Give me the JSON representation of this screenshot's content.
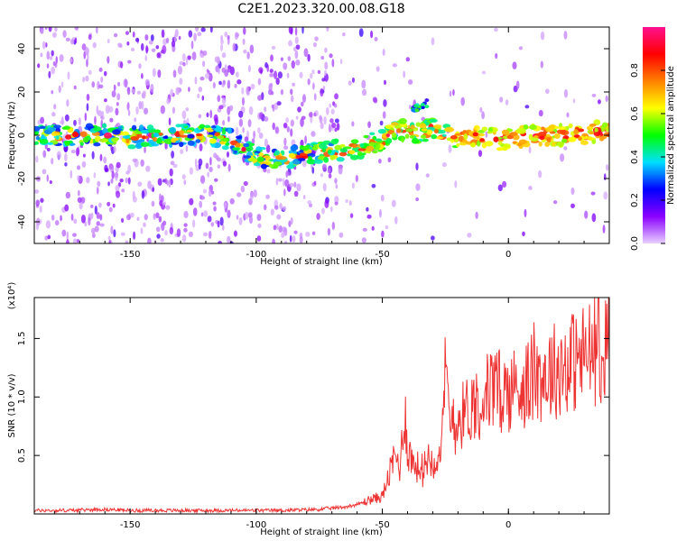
{
  "title": "C2E1.2023.320.00.08.G18",
  "chart_data": [
    {
      "type": "heatmap",
      "xlabel": "Height of straight line (km)",
      "ylabel": "Frequency (Hz)",
      "xlim": [
        -188,
        40
      ],
      "ylim": [
        -50,
        50
      ],
      "xticks": [
        -150,
        -100,
        -50,
        0
      ],
      "yticks": [
        -40,
        -20,
        0,
        20,
        40
      ],
      "xtick_labels": [
        "-150",
        "-100",
        "-50",
        "0"
      ],
      "ytick_labels": [
        "-40",
        "-20",
        "0",
        "20",
        "40"
      ],
      "colorbar": {
        "label": "Normalized spectral amplitude",
        "range": [
          0,
          1
        ],
        "ticks": [
          0,
          0.2,
          0.4,
          0.6,
          0.8
        ],
        "tick_labels": [
          "0.0",
          "0.2",
          "0.4",
          "0.6",
          "0.8"
        ],
        "colormap": [
          "#e8d0ff",
          "#8a00ff",
          "#0000ff",
          "#00e0ff",
          "#00ff00",
          "#ffff00",
          "#ff8000",
          "#ff0000",
          "#ff1090"
        ]
      },
      "ridge": {
        "x": [
          -188,
          -170,
          -160,
          -150,
          -140,
          -130,
          -120,
          -110,
          -100,
          -90,
          -80,
          -70,
          -66,
          -60,
          -55,
          -50,
          -45,
          -40,
          -35,
          -30,
          -25,
          -20,
          -15,
          -10,
          -5,
          0,
          5,
          10,
          20,
          30,
          40
        ],
        "y": [
          0,
          0,
          0,
          -1,
          0,
          0,
          1,
          -2,
          -10,
          -11,
          -9,
          -7,
          -7,
          -6,
          -4,
          -2,
          3,
          2,
          1,
          3,
          0,
          -1,
          0,
          -1,
          -2,
          -2,
          -1,
          0,
          0,
          1,
          2
        ]
      },
      "secondary_ridge": {
        "x": [
          -38,
          -35,
          -32
        ],
        "y": [
          12,
          13,
          15
        ]
      }
    },
    {
      "type": "line",
      "xlabel": "Height of straight line (km)",
      "ylabel": "SNR (10 * v/v)",
      "scale_label": "(x10⁴)",
      "xlim": [
        -188,
        40
      ],
      "ylim": [
        0,
        1.85
      ],
      "xticks": [
        -150,
        -100,
        -50,
        0
      ],
      "yticks": [
        0.5,
        1.0,
        1.5
      ],
      "xtick_labels": [
        "-150",
        "-100",
        "-50",
        "0"
      ],
      "ytick_labels": [
        "0.5",
        "1.0",
        "1.5"
      ],
      "line_color": "#ee3333",
      "series": [
        {
          "x": [
            -188,
            -175,
            -160,
            -150,
            -130,
            -110,
            -90,
            -75,
            -65,
            -60,
            -55,
            -50,
            -47,
            -45,
            -43,
            -41,
            -40,
            -38,
            -36,
            -34,
            -32,
            -30,
            -28,
            -26,
            -25,
            -24,
            -23,
            -22,
            -21,
            -20,
            -18,
            -16,
            -14,
            -12,
            -10,
            -8,
            -5,
            0,
            5,
            10,
            15,
            20,
            25,
            30,
            35,
            38,
            40
          ],
          "y": [
            0.03,
            0.03,
            0.04,
            0.03,
            0.03,
            0.03,
            0.03,
            0.04,
            0.06,
            0.08,
            0.12,
            0.15,
            0.35,
            0.5,
            0.4,
            0.9,
            0.55,
            0.45,
            0.4,
            0.35,
            0.5,
            0.45,
            0.5,
            0.7,
            1.2,
            1.0,
            0.7,
            0.9,
            0.75,
            0.8,
            0.85,
            0.9,
            0.95,
            0.95,
            1.0,
            1.05,
            1.05,
            1.05,
            1.1,
            1.15,
            1.2,
            1.25,
            1.3,
            1.35,
            1.4,
            1.45,
            1.45
          ]
        }
      ]
    }
  ]
}
